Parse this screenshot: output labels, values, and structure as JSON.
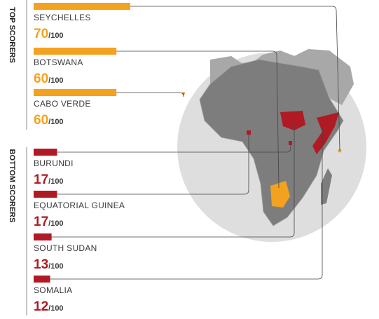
{
  "chart_data": {
    "type": "bar",
    "orientation": "horizontal",
    "xlim": [
      0,
      100
    ],
    "out_of_label": "/100",
    "series": [
      {
        "name": "TOP SCORERS",
        "color": "#f3a21f",
        "categories": [
          "SEYCHELLES",
          "BOTSWANA",
          "CABO VERDE"
        ],
        "values": [
          70,
          60,
          60
        ]
      },
      {
        "name": "BOTTOM SCORERS",
        "color": "#b01a24",
        "categories": [
          "BURUNDI",
          "EQUATORIAL GUINEA",
          "SOUTH SUDAN",
          "SOMALIA"
        ],
        "values": [
          17,
          17,
          13,
          12
        ]
      }
    ]
  }
}
